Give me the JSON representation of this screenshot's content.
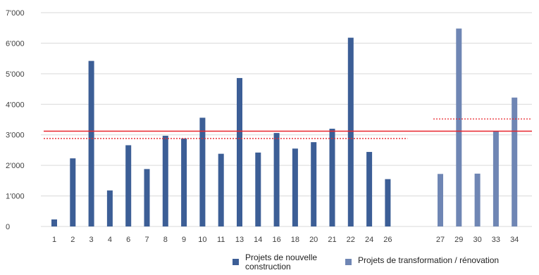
{
  "chart_data": {
    "type": "bar",
    "title": "",
    "xlabel": "",
    "ylabel": "",
    "ylim": [
      0,
      7000
    ],
    "yticks": [
      "0",
      "1'000",
      "2'000",
      "3'000",
      "4'000",
      "5'000",
      "6'000",
      "7'000"
    ],
    "grid": true,
    "legend_position": "bottom-right",
    "series": [
      {
        "name": "Projets de nouvelle construction",
        "color": "#3c5e96",
        "categories": [
          "1",
          "2",
          "3",
          "4",
          "6",
          "7",
          "8",
          "9",
          "10",
          "11",
          "13",
          "14",
          "16",
          "18",
          "20",
          "21",
          "22",
          "24",
          "26"
        ],
        "values": [
          230,
          2230,
          5420,
          1180,
          2660,
          1880,
          2970,
          2880,
          3560,
          2380,
          4860,
          2420,
          3060,
          2550,
          2760,
          3200,
          6180,
          2440,
          1550
        ],
        "reference_lines": [
          {
            "style": "solid",
            "color": "#e8242b",
            "value": 3120
          },
          {
            "style": "dotted",
            "color": "#e8242b",
            "value": 2880
          }
        ]
      },
      {
        "name": "Projets de transformation / rénovation",
        "color": "#6f86b4",
        "categories": [
          "27",
          "29",
          "30",
          "33",
          "34"
        ],
        "values": [
          1720,
          6480,
          1730,
          3120,
          4220
        ],
        "reference_lines": [
          {
            "style": "solid",
            "color": "#e8242b",
            "value": 3120
          },
          {
            "style": "dotted",
            "color": "#e8242b",
            "value": 3520
          }
        ]
      }
    ]
  }
}
